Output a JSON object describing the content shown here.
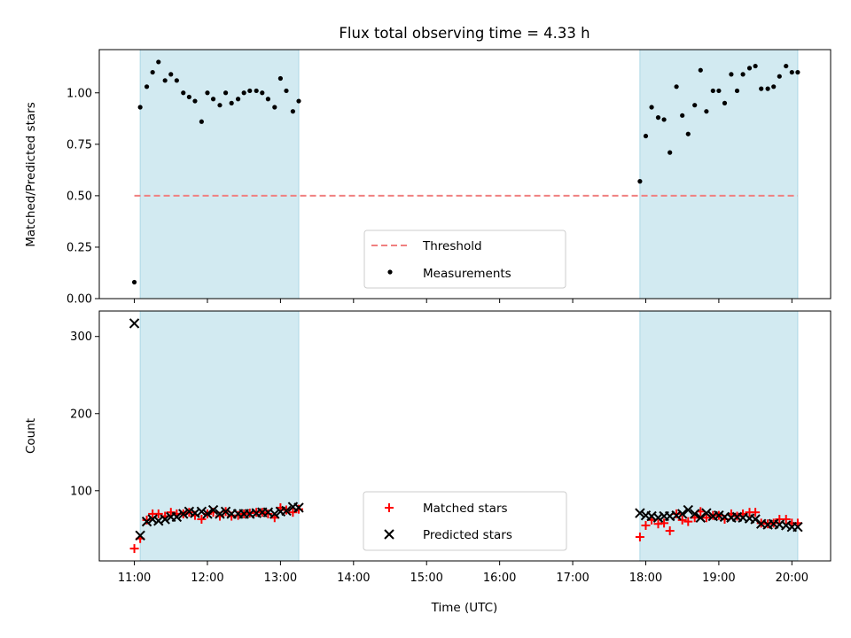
{
  "chart_data": {
    "title": "Flux total observing time = 4.33 h",
    "xlabel": "Time (UTC)",
    "x_ticks": [
      "11:00",
      "12:00",
      "13:00",
      "14:00",
      "15:00",
      "16:00",
      "17:00",
      "18:00",
      "19:00",
      "20:00"
    ],
    "xlim_hours": [
      10.52,
      20.53
    ],
    "shaded_intervals": [
      [
        11.08,
        13.25
      ],
      [
        17.92,
        20.08
      ]
    ],
    "shade_color": "#add8e6",
    "panels": [
      {
        "type": "scatter",
        "ylabel": "Matched/Predicted stars",
        "ylim": [
          0,
          1.21
        ],
        "y_ticks": [
          "0.00",
          "0.25",
          "0.50",
          "0.75",
          "1.00"
        ],
        "threshold": {
          "name": "Threshold",
          "value": 0.5,
          "x_range": [
            11.0,
            20.08
          ],
          "color": "#f08080",
          "dashed": true
        },
        "series": [
          {
            "name": "Measurements",
            "marker": "dot",
            "color": "#000000",
            "x": [
              11.0,
              11.08,
              11.17,
              11.25,
              11.33,
              11.42,
              11.5,
              11.58,
              11.67,
              11.75,
              11.83,
              11.92,
              12.0,
              12.08,
              12.17,
              12.25,
              12.33,
              12.42,
              12.5,
              12.58,
              12.67,
              12.75,
              12.83,
              12.92,
              13.0,
              13.08,
              13.17,
              13.25,
              17.92,
              18.0,
              18.08,
              18.17,
              18.25,
              18.33,
              18.42,
              18.5,
              18.58,
              18.67,
              18.75,
              18.83,
              18.92,
              19.0,
              19.08,
              19.17,
              19.25,
              19.33,
              19.42,
              19.5,
              19.58,
              19.67,
              19.75,
              19.83,
              19.92,
              20.0,
              20.08
            ],
            "y": [
              0.08,
              0.93,
              1.03,
              1.1,
              1.15,
              1.06,
              1.09,
              1.06,
              1.0,
              0.98,
              0.96,
              0.86,
              1.0,
              0.97,
              0.94,
              1.0,
              0.95,
              0.97,
              1.0,
              1.01,
              1.01,
              1.0,
              0.97,
              0.93,
              1.07,
              1.01,
              0.91,
              0.96,
              0.57,
              0.79,
              0.93,
              0.88,
              0.87,
              0.71,
              1.03,
              0.89,
              0.8,
              0.94,
              1.11,
              0.91,
              1.01,
              1.01,
              0.95,
              1.09,
              1.01,
              1.09,
              1.12,
              1.13,
              1.02,
              1.02,
              1.03,
              1.08,
              1.13,
              1.1,
              1.1
            ]
          }
        ],
        "legend": [
          "Threshold",
          "Measurements"
        ]
      },
      {
        "type": "scatter",
        "ylabel": "Count",
        "ylim": [
          9,
          333
        ],
        "y_ticks": [
          "100",
          "200",
          "300"
        ],
        "series": [
          {
            "name": "Matched stars",
            "marker": "plus",
            "color": "#ff0000",
            "x": [
              11.0,
              11.08,
              11.17,
              11.25,
              11.33,
              11.42,
              11.5,
              11.58,
              11.67,
              11.75,
              11.83,
              11.92,
              12.0,
              12.08,
              12.17,
              12.25,
              12.33,
              12.42,
              12.5,
              12.58,
              12.67,
              12.75,
              12.83,
              12.92,
              13.0,
              13.08,
              13.17,
              13.25,
              17.92,
              18.0,
              18.08,
              18.17,
              18.25,
              18.33,
              18.42,
              18.5,
              18.58,
              18.67,
              18.75,
              18.83,
              18.92,
              19.0,
              19.08,
              19.17,
              19.25,
              19.33,
              19.42,
              19.5,
              19.58,
              19.67,
              19.75,
              19.83,
              19.92,
              20.0,
              20.08
            ],
            "y": [
              25,
              38,
              62,
              70,
              70,
              67,
              72,
              70,
              70,
              72,
              68,
              63,
              70,
              72,
              67,
              73,
              67,
              68,
              70,
              71,
              72,
              72,
              70,
              65,
              78,
              75,
              72,
              76,
              40,
              55,
              62,
              57,
              58,
              48,
              70,
              62,
              60,
              65,
              73,
              65,
              68,
              68,
              63,
              70,
              67,
              70,
              72,
              72,
              58,
              57,
              58,
              63,
              63,
              58,
              58
            ]
          },
          {
            "name": "Predicted stars",
            "marker": "x",
            "color": "#000000",
            "x": [
              11.0,
              11.08,
              11.17,
              11.25,
              11.33,
              11.42,
              11.5,
              11.58,
              11.67,
              11.75,
              11.83,
              11.92,
              12.0,
              12.08,
              12.17,
              12.25,
              12.33,
              12.42,
              12.5,
              12.58,
              12.67,
              12.75,
              12.83,
              12.92,
              13.0,
              13.08,
              13.17,
              13.25,
              17.92,
              18.0,
              18.08,
              18.17,
              18.25,
              18.33,
              18.42,
              18.5,
              18.58,
              18.67,
              18.75,
              18.83,
              18.92,
              19.0,
              19.08,
              19.17,
              19.25,
              19.33,
              19.42,
              19.5,
              19.58,
              19.67,
              19.75,
              19.83,
              19.92,
              20.0,
              20.08
            ],
            "y": [
              317,
              42,
              60,
              63,
              61,
              63,
              66,
              66,
              70,
              73,
              71,
              73,
              70,
              75,
              70,
              73,
              70,
              70,
              70,
              70,
              71,
              72,
              72,
              70,
              73,
              74,
              79,
              78,
              71,
              68,
              67,
              65,
              67,
              67,
              68,
              70,
              75,
              70,
              65,
              71,
              67,
              68,
              66,
              65,
              66,
              65,
              64,
              63,
              57,
              56,
              57,
              56,
              55,
              53,
              53
            ]
          }
        ],
        "legend": [
          "Matched stars",
          "Predicted stars"
        ]
      }
    ]
  }
}
